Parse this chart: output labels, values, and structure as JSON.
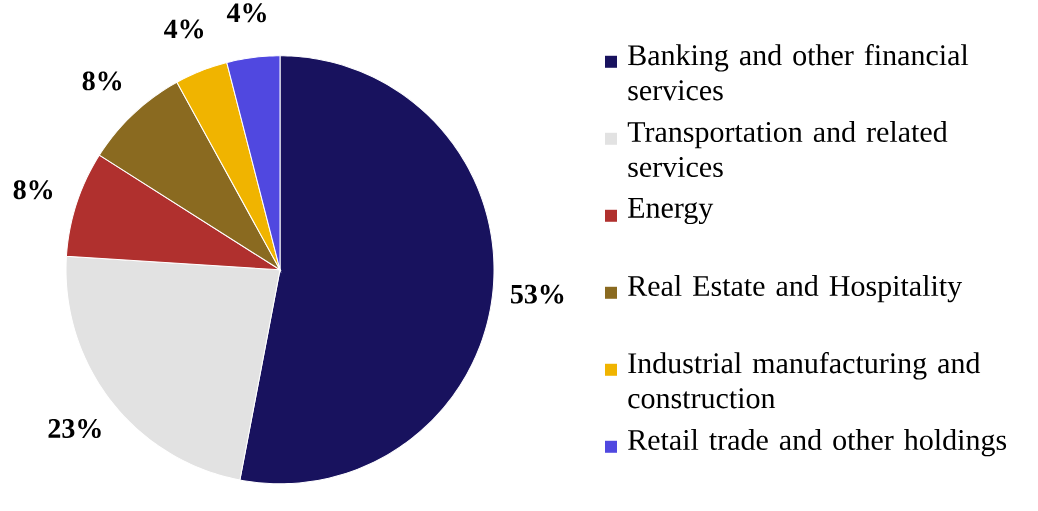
{
  "chart_data": {
    "type": "pie",
    "categories": [
      "Banking and other financial services",
      "Transportation and related services",
      "Energy",
      "Real Estate and Hospitality",
      "Industrial manufacturing and construction",
      "Retail trade and other holdings"
    ],
    "values": [
      53,
      23,
      8,
      8,
      4,
      4
    ],
    "value_labels": [
      "53%",
      "23%",
      "8%",
      "8%",
      "4%",
      "4%"
    ],
    "colors": [
      "#18125e",
      "#e2e2e2",
      "#b0302e",
      "#8a6a20",
      "#f0b400",
      "#5048e0"
    ],
    "legend": "right"
  }
}
